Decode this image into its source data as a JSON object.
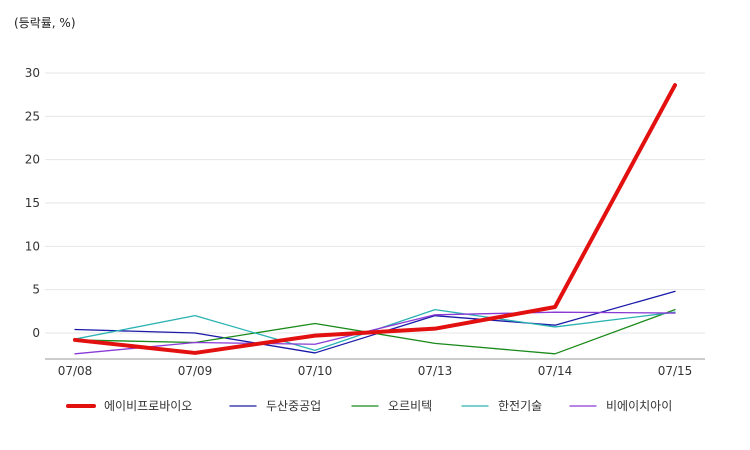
{
  "unit_label": "(등락률, %)",
  "chart_data": {
    "type": "line",
    "title": "",
    "xlabel": "",
    "ylabel": "(등락률, %)",
    "categories": [
      "07/08",
      "07/09",
      "07/10",
      "07/13",
      "07/14",
      "07/15"
    ],
    "ylim": [
      -3,
      30
    ],
    "yticks": [
      0,
      5,
      10,
      15,
      20,
      25,
      30
    ],
    "grid": true,
    "legend_position": "bottom",
    "series": [
      {
        "name": "에이비프로바이오",
        "color": "#e31010",
        "width": 4,
        "values": [
          -0.8,
          -2.3,
          -0.3,
          0.5,
          3.0,
          28.6
        ]
      },
      {
        "name": "두산중공업",
        "color": "#1a1aa8",
        "width": 1.3,
        "values": [
          0.4,
          0.0,
          -2.3,
          2.0,
          0.9,
          4.8
        ]
      },
      {
        "name": "오르비텍",
        "color": "#1a8a1a",
        "width": 1.3,
        "values": [
          -0.8,
          -1.1,
          1.1,
          -1.2,
          -2.4,
          2.7
        ]
      },
      {
        "name": "한전기술",
        "color": "#2ab2b2",
        "width": 1.3,
        "values": [
          -0.7,
          2.0,
          -2.0,
          2.7,
          0.7,
          2.4
        ]
      },
      {
        "name": "비에이치아이",
        "color": "#8a3ad6",
        "width": 1.3,
        "values": [
          -2.4,
          -1.1,
          -1.3,
          2.1,
          2.4,
          2.3
        ]
      }
    ]
  }
}
